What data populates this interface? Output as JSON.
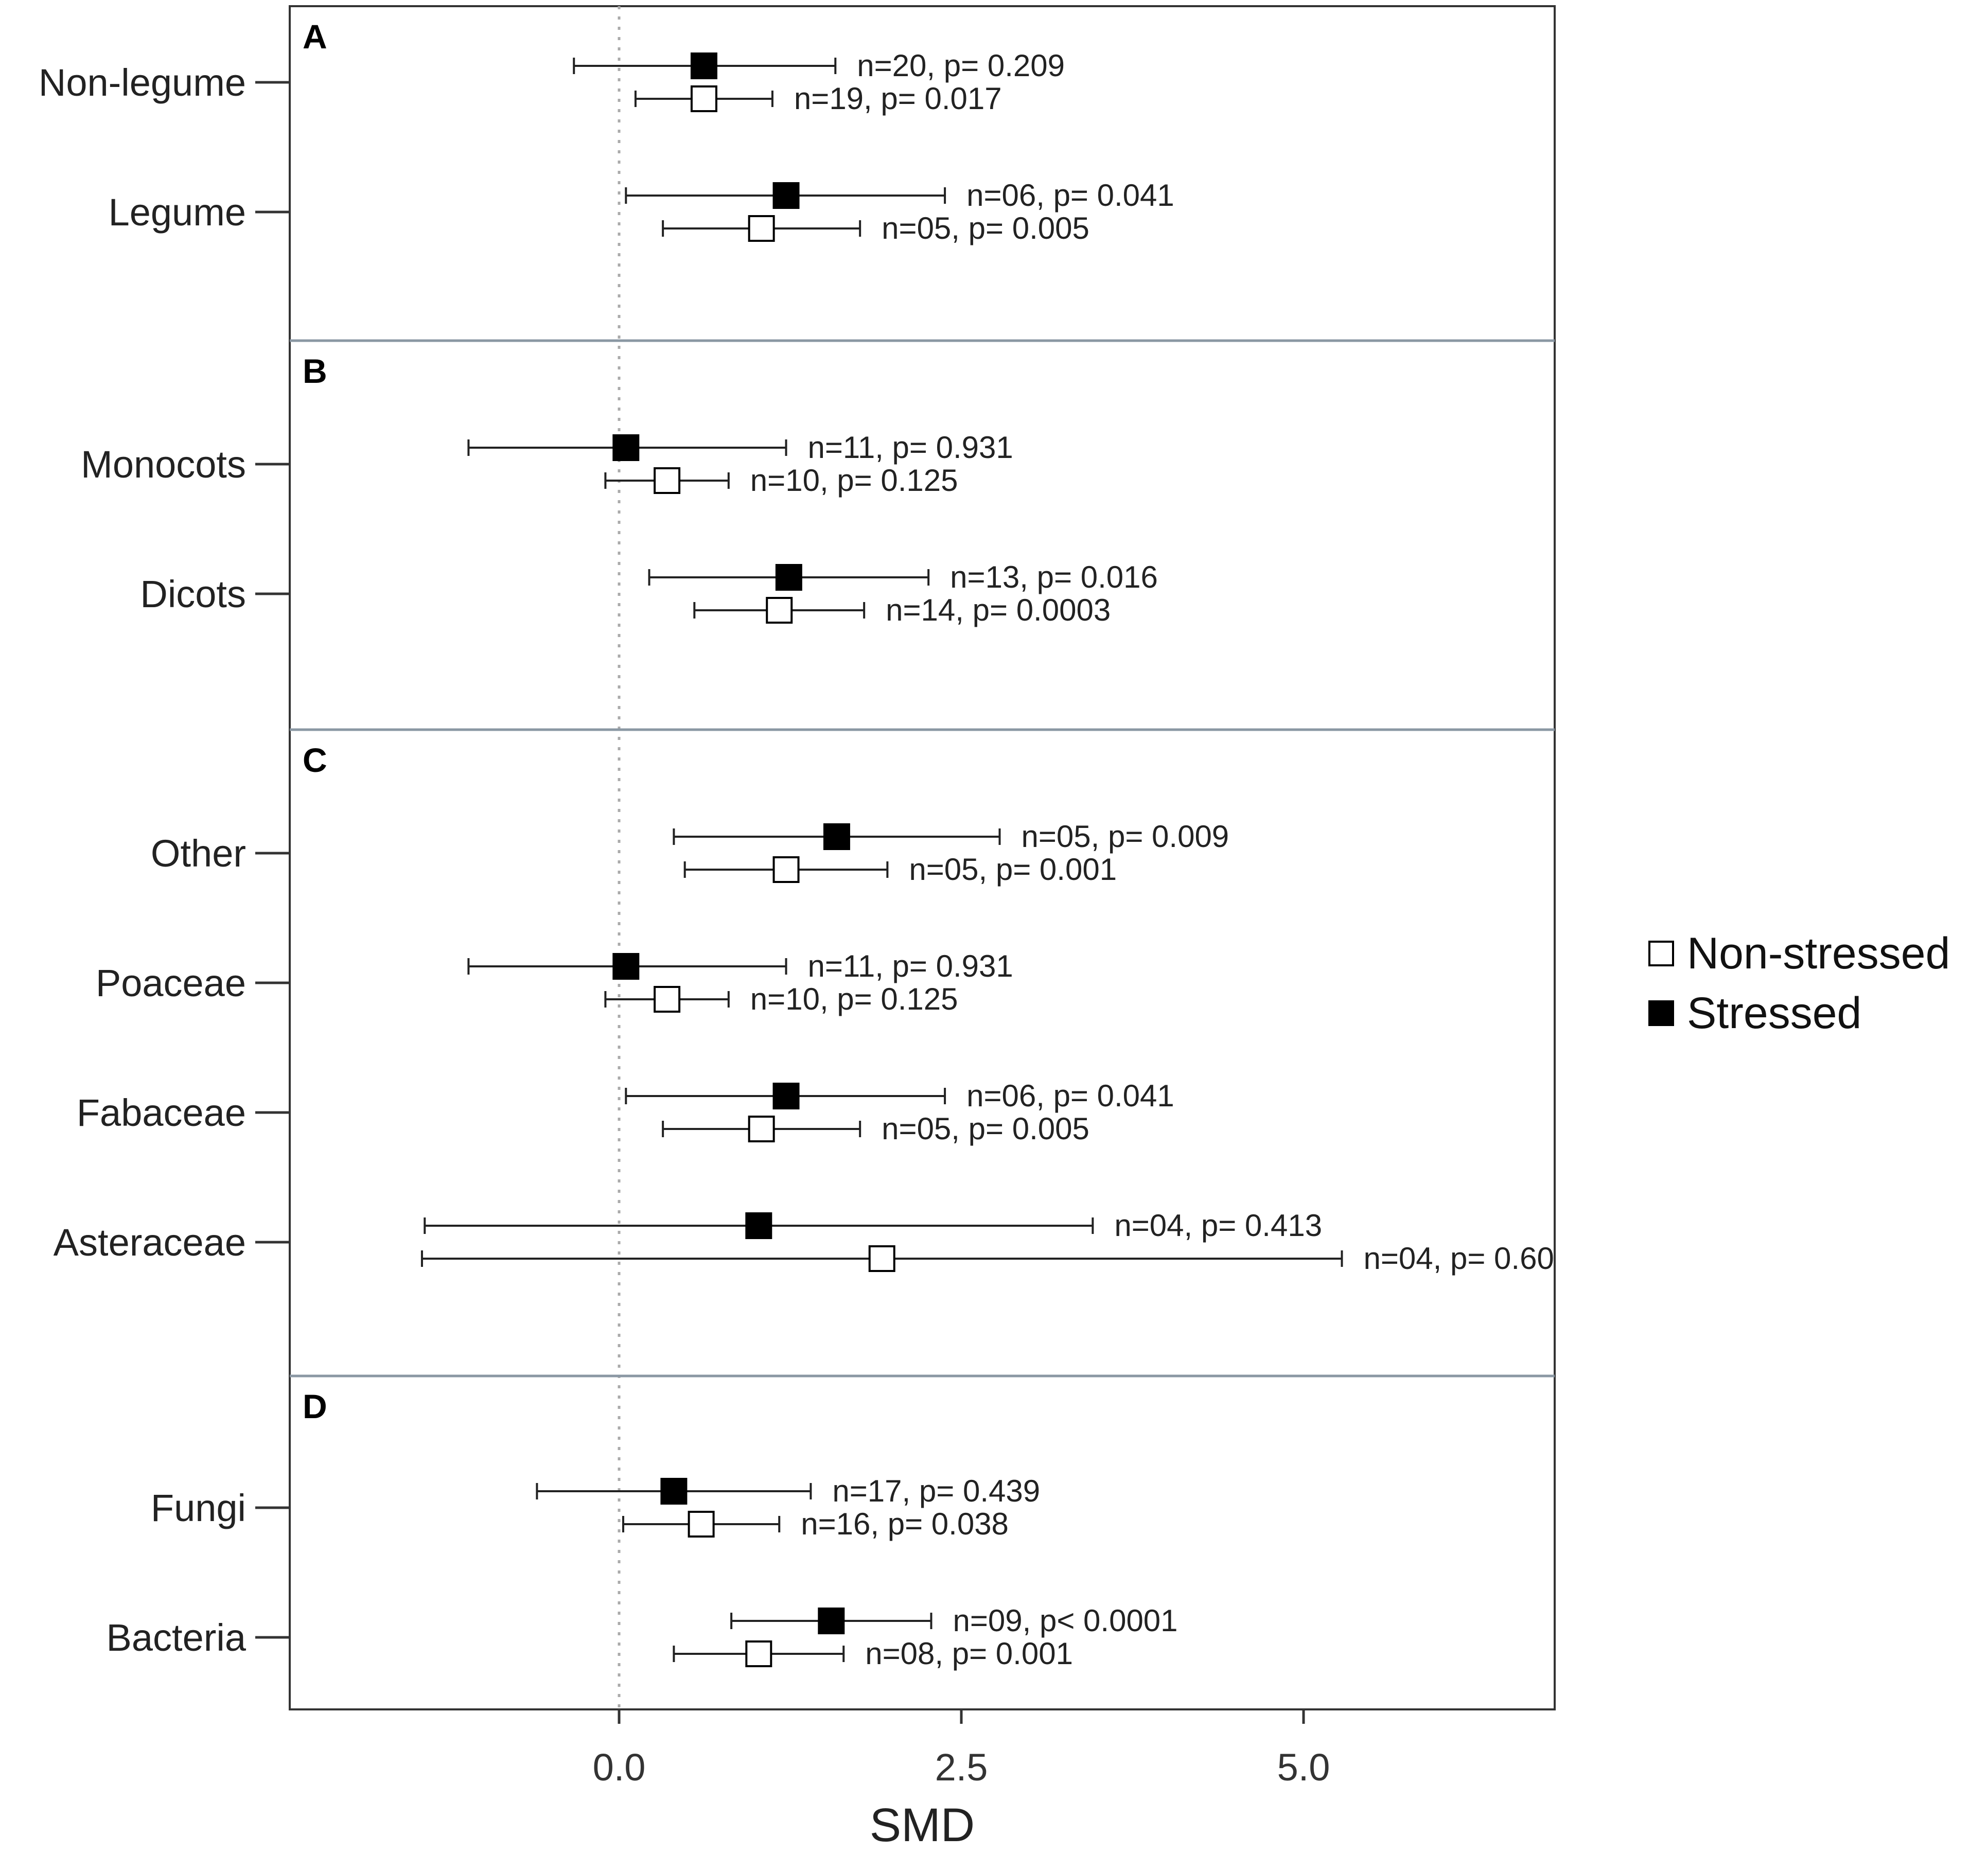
{
  "chart_data": {
    "type": "forest",
    "xlabel": "SMD",
    "xlim": [
      -2.4,
      6.8
    ],
    "xticks": [
      0.0,
      2.5,
      5.0
    ],
    "xtick_labels": [
      "0.0",
      "2.5",
      "5.0"
    ],
    "reference_line": 0,
    "legend": {
      "placement": "right",
      "entries": [
        {
          "name": "Non-stressed",
          "marker": "open-square"
        },
        {
          "name": "Stressed",
          "marker": "filled-square"
        }
      ]
    },
    "colors": {
      "stressed": "#000000",
      "non_stressed": "#ffffff",
      "panel_divider": "#8a97a3",
      "reference_line": "#aaaaaa"
    },
    "panels": [
      {
        "letter": "A",
        "groups": [
          {
            "label": "Non-legume",
            "stressed": {
              "smd": 0.62,
              "low": -0.33,
              "high": 1.58,
              "annotation": "n=20, p= 0.209"
            },
            "non_stressed": {
              "smd": 0.62,
              "low": 0.12,
              "high": 1.12,
              "annotation": "n=19, p= 0.017"
            }
          },
          {
            "label": "Legume",
            "stressed": {
              "smd": 1.22,
              "low": 0.05,
              "high": 2.38,
              "annotation": "n=06, p= 0.041"
            },
            "non_stressed": {
              "smd": 1.04,
              "low": 0.32,
              "high": 1.76,
              "annotation": "n=05, p= 0.005"
            }
          }
        ]
      },
      {
        "letter": "B",
        "groups": [
          {
            "label": "Monocots",
            "stressed": {
              "smd": 0.05,
              "low": -1.1,
              "high": 1.22,
              "annotation": "n=11, p= 0.931"
            },
            "non_stressed": {
              "smd": 0.35,
              "low": -0.1,
              "high": 0.8,
              "annotation": "n=10, p= 0.125"
            }
          },
          {
            "label": "Dicots",
            "stressed": {
              "smd": 1.24,
              "low": 0.22,
              "high": 2.26,
              "annotation": "n=13, p= 0.016"
            },
            "non_stressed": {
              "smd": 1.17,
              "low": 0.55,
              "high": 1.79,
              "annotation": "n=14, p= 0.0003"
            }
          }
        ]
      },
      {
        "letter": "C",
        "groups": [
          {
            "label": "Other",
            "stressed": {
              "smd": 1.59,
              "low": 0.4,
              "high": 2.78,
              "annotation": "n=05, p= 0.009"
            },
            "non_stressed": {
              "smd": 1.22,
              "low": 0.48,
              "high": 1.96,
              "annotation": "n=05, p= 0.001"
            }
          },
          {
            "label": "Poaceae",
            "stressed": {
              "smd": 0.05,
              "low": -1.1,
              "high": 1.22,
              "annotation": "n=11, p= 0.931"
            },
            "non_stressed": {
              "smd": 0.35,
              "low": -0.1,
              "high": 0.8,
              "annotation": "n=10, p= 0.125"
            }
          },
          {
            "label": "Fabaceae",
            "stressed": {
              "smd": 1.22,
              "low": 0.05,
              "high": 2.38,
              "annotation": "n=06, p= 0.041"
            },
            "non_stressed": {
              "smd": 1.04,
              "low": 0.32,
              "high": 1.76,
              "annotation": "n=05, p= 0.005"
            }
          },
          {
            "label": "Asteraceae",
            "stressed": {
              "smd": 1.02,
              "low": -1.42,
              "high": 3.46,
              "annotation": "n=04, p= 0.413"
            },
            "non_stressed": {
              "smd": 1.92,
              "low": -1.44,
              "high": 5.28,
              "annotation": "n=04, p= 0.60"
            }
          }
        ]
      },
      {
        "letter": "D",
        "groups": [
          {
            "label": "Fungi",
            "stressed": {
              "smd": 0.4,
              "low": -0.6,
              "high": 1.4,
              "annotation": "n=17, p= 0.439"
            },
            "non_stressed": {
              "smd": 0.6,
              "low": 0.03,
              "high": 1.17,
              "annotation": "n=16, p= 0.038"
            }
          },
          {
            "label": "Bacteria",
            "stressed": {
              "smd": 1.55,
              "low": 0.82,
              "high": 2.28,
              "annotation": "n=09, p< 0.0001"
            },
            "non_stressed": {
              "smd": 1.02,
              "low": 0.4,
              "high": 1.64,
              "annotation": "n=08, p= 0.001"
            }
          }
        ]
      }
    ]
  }
}
